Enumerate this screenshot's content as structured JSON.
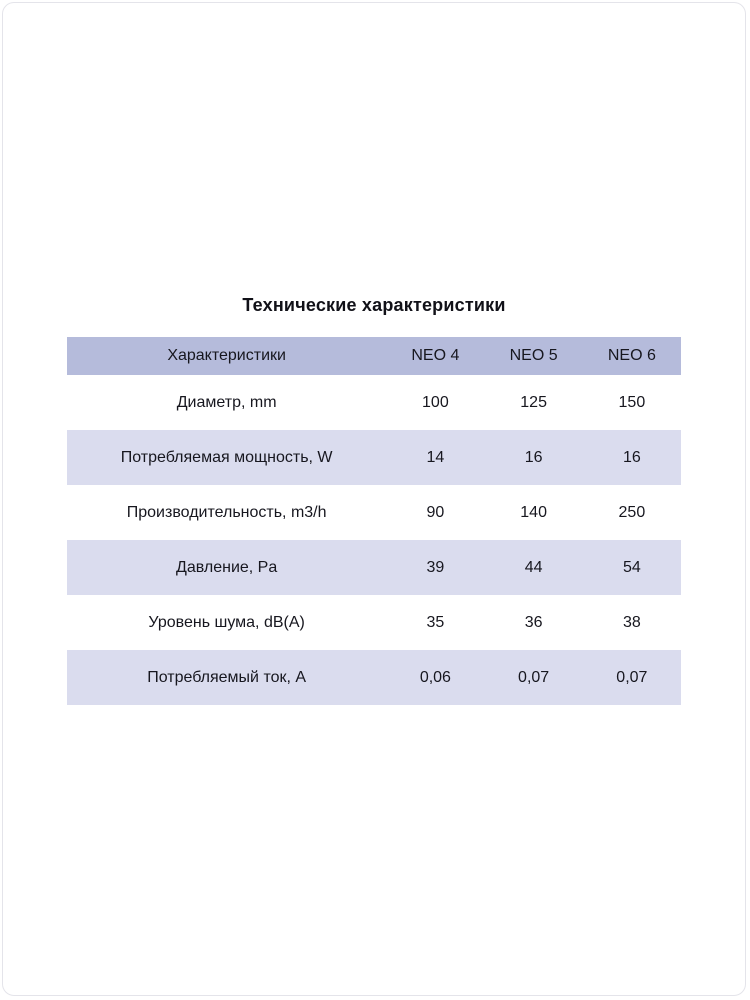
{
  "page": {
    "title": "Технические характеристики"
  },
  "table": {
    "header": [
      "Характеристики",
      "NEO 4",
      "NEO 5",
      "NEO 6"
    ],
    "rows": [
      {
        "label": "Диаметр, mm",
        "values": [
          "100",
          "125",
          "150"
        ]
      },
      {
        "label": "Потребляемая мощность, W",
        "values": [
          "14",
          "16",
          "16"
        ]
      },
      {
        "label": "Производительность, m3/h",
        "values": [
          "90",
          "140",
          "250"
        ]
      },
      {
        "label": "Давление, Pa",
        "values": [
          "39",
          "44",
          "54"
        ]
      },
      {
        "label": "Уровень шума, dB(A)",
        "values": [
          "35",
          "36",
          "38"
        ]
      },
      {
        "label": "Потребляемый ток, A",
        "values": [
          "0,06",
          "0,07",
          "0,07"
        ]
      }
    ],
    "colors": {
      "header_bg": "#b5bbdb",
      "stripe_bg": "#dadcee",
      "row_bg": "#ffffff",
      "text": "#17171f"
    }
  }
}
